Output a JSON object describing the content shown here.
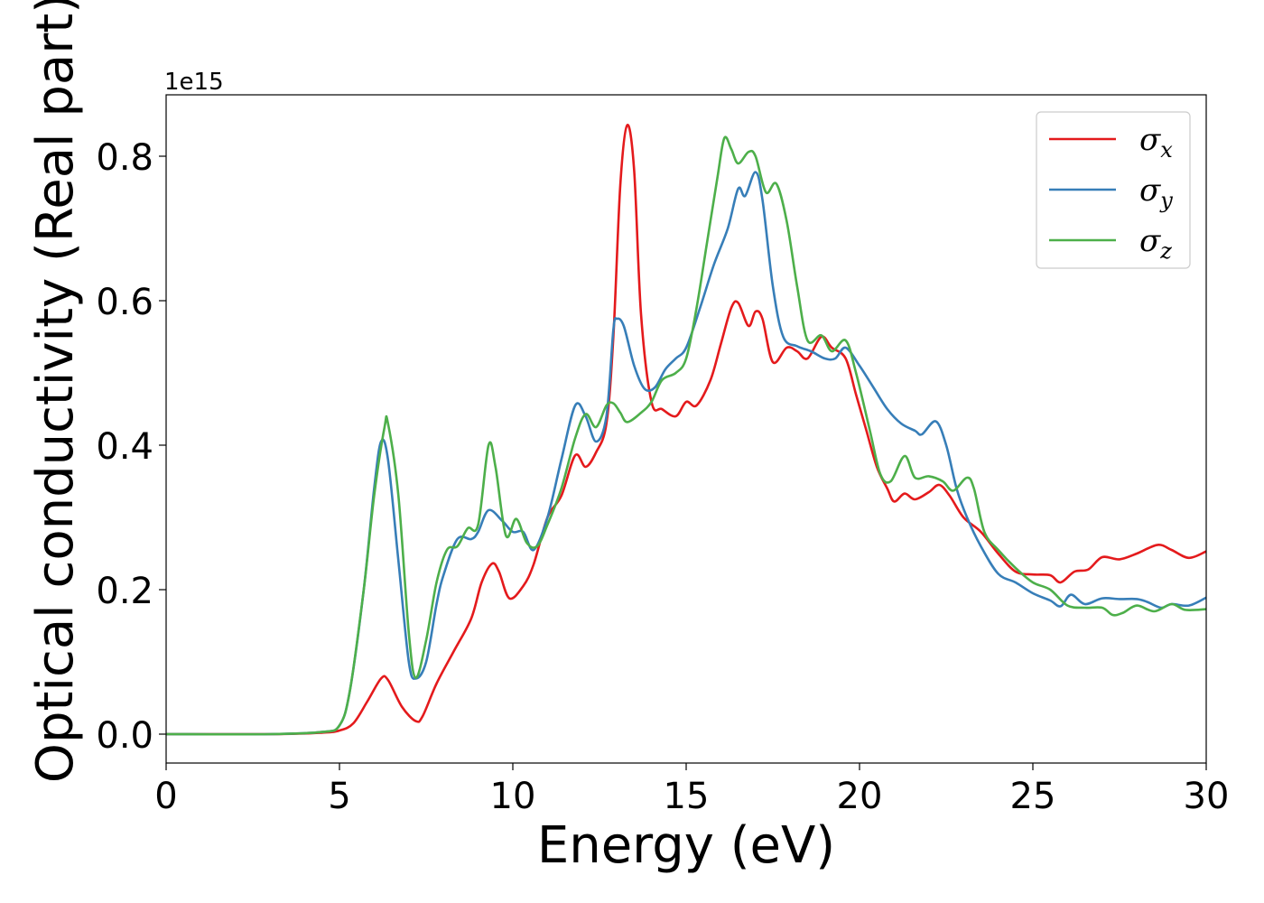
{
  "chart_data": {
    "type": "line",
    "xlabel": "Energy (eV)",
    "ylabel": "Optical conductivity (Real part)",
    "y_offset_label": "1e15",
    "y_scale": 1000000000000000.0,
    "xlim": [
      0,
      30
    ],
    "ylim": [
      -0.04,
      0.885
    ],
    "x_ticks": [
      0,
      5,
      10,
      15,
      20,
      25,
      30
    ],
    "x_tick_labels": [
      "0",
      "5",
      "10",
      "15",
      "20",
      "25",
      "30"
    ],
    "y_ticks": [
      0.0,
      0.2,
      0.4,
      0.6,
      0.8
    ],
    "y_tick_labels": [
      "0.0",
      "0.2",
      "0.4",
      "0.6",
      "0.8"
    ],
    "grid": false,
    "legend_position": "top-right",
    "series": [
      {
        "name": "σx",
        "symbol": "σ",
        "subscript": "x",
        "color": "#e41a1c",
        "points": [
          [
            0,
            0.0
          ],
          [
            3,
            0.0
          ],
          [
            4.5,
            0.002
          ],
          [
            5.0,
            0.005
          ],
          [
            5.4,
            0.015
          ],
          [
            5.8,
            0.045
          ],
          [
            6.2,
            0.077
          ],
          [
            6.4,
            0.075
          ],
          [
            6.8,
            0.038
          ],
          [
            7.2,
            0.018
          ],
          [
            7.4,
            0.025
          ],
          [
            7.8,
            0.07
          ],
          [
            8.3,
            0.115
          ],
          [
            8.8,
            0.16
          ],
          [
            9.1,
            0.21
          ],
          [
            9.4,
            0.236
          ],
          [
            9.6,
            0.225
          ],
          [
            9.9,
            0.188
          ],
          [
            10.3,
            0.205
          ],
          [
            10.6,
            0.235
          ],
          [
            11.0,
            0.3
          ],
          [
            11.4,
            0.33
          ],
          [
            11.8,
            0.386
          ],
          [
            12.1,
            0.37
          ],
          [
            12.4,
            0.39
          ],
          [
            12.7,
            0.43
          ],
          [
            12.9,
            0.55
          ],
          [
            13.1,
            0.76
          ],
          [
            13.3,
            0.843
          ],
          [
            13.5,
            0.78
          ],
          [
            13.7,
            0.58
          ],
          [
            14.0,
            0.46
          ],
          [
            14.3,
            0.45
          ],
          [
            14.7,
            0.44
          ],
          [
            15.0,
            0.46
          ],
          [
            15.3,
            0.455
          ],
          [
            15.7,
            0.49
          ],
          [
            16.0,
            0.54
          ],
          [
            16.3,
            0.59
          ],
          [
            16.5,
            0.597
          ],
          [
            16.8,
            0.565
          ],
          [
            17.0,
            0.585
          ],
          [
            17.2,
            0.575
          ],
          [
            17.5,
            0.515
          ],
          [
            17.9,
            0.535
          ],
          [
            18.2,
            0.53
          ],
          [
            18.5,
            0.52
          ],
          [
            18.9,
            0.55
          ],
          [
            19.2,
            0.535
          ],
          [
            19.6,
            0.52
          ],
          [
            19.9,
            0.47
          ],
          [
            20.2,
            0.42
          ],
          [
            20.5,
            0.37
          ],
          [
            20.8,
            0.34
          ],
          [
            21.0,
            0.322
          ],
          [
            21.3,
            0.333
          ],
          [
            21.6,
            0.325
          ],
          [
            22.0,
            0.335
          ],
          [
            22.3,
            0.345
          ],
          [
            22.6,
            0.33
          ],
          [
            23.0,
            0.3
          ],
          [
            23.5,
            0.28
          ],
          [
            24.0,
            0.25
          ],
          [
            24.5,
            0.225
          ],
          [
            25.0,
            0.221
          ],
          [
            25.5,
            0.22
          ],
          [
            25.8,
            0.21
          ],
          [
            26.2,
            0.225
          ],
          [
            26.6,
            0.228
          ],
          [
            27.0,
            0.245
          ],
          [
            27.5,
            0.242
          ],
          [
            28.0,
            0.25
          ],
          [
            28.6,
            0.262
          ],
          [
            29.0,
            0.255
          ],
          [
            29.5,
            0.244
          ],
          [
            30.0,
            0.253
          ]
        ]
      },
      {
        "name": "σy",
        "symbol": "σ",
        "subscript": "y",
        "color": "#377eb8",
        "points": [
          [
            0,
            0.0
          ],
          [
            3,
            0.0
          ],
          [
            4.5,
            0.003
          ],
          [
            5.0,
            0.012
          ],
          [
            5.3,
            0.06
          ],
          [
            5.7,
            0.2
          ],
          [
            6.0,
            0.34
          ],
          [
            6.2,
            0.405
          ],
          [
            6.4,
            0.38
          ],
          [
            6.7,
            0.24
          ],
          [
            7.0,
            0.1
          ],
          [
            7.2,
            0.077
          ],
          [
            7.5,
            0.1
          ],
          [
            7.8,
            0.18
          ],
          [
            8.0,
            0.22
          ],
          [
            8.4,
            0.27
          ],
          [
            8.8,
            0.27
          ],
          [
            9.0,
            0.28
          ],
          [
            9.3,
            0.31
          ],
          [
            9.7,
            0.295
          ],
          [
            10.0,
            0.28
          ],
          [
            10.3,
            0.28
          ],
          [
            10.6,
            0.255
          ],
          [
            11.0,
            0.3
          ],
          [
            11.4,
            0.38
          ],
          [
            11.8,
            0.455
          ],
          [
            12.1,
            0.44
          ],
          [
            12.4,
            0.405
          ],
          [
            12.7,
            0.44
          ],
          [
            12.9,
            0.56
          ],
          [
            13.0,
            0.575
          ],
          [
            13.2,
            0.565
          ],
          [
            13.5,
            0.51
          ],
          [
            13.8,
            0.478
          ],
          [
            14.1,
            0.48
          ],
          [
            14.4,
            0.505
          ],
          [
            14.7,
            0.52
          ],
          [
            15.0,
            0.535
          ],
          [
            15.4,
            0.59
          ],
          [
            15.8,
            0.65
          ],
          [
            16.2,
            0.7
          ],
          [
            16.5,
            0.755
          ],
          [
            16.7,
            0.745
          ],
          [
            17.0,
            0.778
          ],
          [
            17.2,
            0.74
          ],
          [
            17.5,
            0.62
          ],
          [
            17.8,
            0.55
          ],
          [
            18.2,
            0.537
          ],
          [
            18.6,
            0.53
          ],
          [
            19.0,
            0.52
          ],
          [
            19.3,
            0.52
          ],
          [
            19.6,
            0.535
          ],
          [
            20.0,
            0.51
          ],
          [
            20.4,
            0.48
          ],
          [
            20.8,
            0.45
          ],
          [
            21.2,
            0.43
          ],
          [
            21.6,
            0.42
          ],
          [
            21.8,
            0.415
          ],
          [
            22.2,
            0.433
          ],
          [
            22.5,
            0.4
          ],
          [
            22.8,
            0.34
          ],
          [
            23.1,
            0.3
          ],
          [
            23.5,
            0.26
          ],
          [
            24.0,
            0.222
          ],
          [
            24.5,
            0.21
          ],
          [
            25.0,
            0.195
          ],
          [
            25.5,
            0.185
          ],
          [
            25.8,
            0.177
          ],
          [
            26.1,
            0.193
          ],
          [
            26.5,
            0.18
          ],
          [
            27.0,
            0.188
          ],
          [
            27.5,
            0.187
          ],
          [
            28.0,
            0.187
          ],
          [
            28.3,
            0.183
          ],
          [
            28.7,
            0.175
          ],
          [
            29.0,
            0.18
          ],
          [
            29.5,
            0.178
          ],
          [
            30.0,
            0.189
          ]
        ]
      },
      {
        "name": "σz",
        "symbol": "σ",
        "subscript": "z",
        "color": "#4daf4a",
        "points": [
          [
            0,
            0.0
          ],
          [
            3,
            0.0
          ],
          [
            4.5,
            0.003
          ],
          [
            5.0,
            0.012
          ],
          [
            5.3,
            0.06
          ],
          [
            5.7,
            0.2
          ],
          [
            6.0,
            0.33
          ],
          [
            6.3,
            0.425
          ],
          [
            6.4,
            0.43
          ],
          [
            6.7,
            0.33
          ],
          [
            7.0,
            0.14
          ],
          [
            7.2,
            0.078
          ],
          [
            7.5,
            0.13
          ],
          [
            7.8,
            0.21
          ],
          [
            8.1,
            0.255
          ],
          [
            8.4,
            0.26
          ],
          [
            8.7,
            0.285
          ],
          [
            9.0,
            0.29
          ],
          [
            9.3,
            0.4
          ],
          [
            9.5,
            0.37
          ],
          [
            9.8,
            0.275
          ],
          [
            10.1,
            0.298
          ],
          [
            10.4,
            0.265
          ],
          [
            10.7,
            0.26
          ],
          [
            11.0,
            0.29
          ],
          [
            11.4,
            0.34
          ],
          [
            11.8,
            0.41
          ],
          [
            12.1,
            0.443
          ],
          [
            12.4,
            0.425
          ],
          [
            12.7,
            0.455
          ],
          [
            12.9,
            0.458
          ],
          [
            13.1,
            0.445
          ],
          [
            13.3,
            0.432
          ],
          [
            13.7,
            0.445
          ],
          [
            14.0,
            0.46
          ],
          [
            14.3,
            0.49
          ],
          [
            14.7,
            0.5
          ],
          [
            15.0,
            0.52
          ],
          [
            15.3,
            0.59
          ],
          [
            15.6,
            0.68
          ],
          [
            15.9,
            0.77
          ],
          [
            16.1,
            0.825
          ],
          [
            16.3,
            0.81
          ],
          [
            16.5,
            0.79
          ],
          [
            16.8,
            0.806
          ],
          [
            17.0,
            0.8
          ],
          [
            17.3,
            0.75
          ],
          [
            17.6,
            0.762
          ],
          [
            17.9,
            0.71
          ],
          [
            18.2,
            0.62
          ],
          [
            18.5,
            0.545
          ],
          [
            18.9,
            0.552
          ],
          [
            19.2,
            0.53
          ],
          [
            19.6,
            0.545
          ],
          [
            19.9,
            0.5
          ],
          [
            20.3,
            0.42
          ],
          [
            20.6,
            0.36
          ],
          [
            20.9,
            0.35
          ],
          [
            21.3,
            0.385
          ],
          [
            21.6,
            0.355
          ],
          [
            22.0,
            0.357
          ],
          [
            22.4,
            0.35
          ],
          [
            22.7,
            0.337
          ],
          [
            23.1,
            0.355
          ],
          [
            23.3,
            0.34
          ],
          [
            23.6,
            0.28
          ],
          [
            24.0,
            0.255
          ],
          [
            24.5,
            0.23
          ],
          [
            25.0,
            0.21
          ],
          [
            25.5,
            0.2
          ],
          [
            26.0,
            0.178
          ],
          [
            26.5,
            0.175
          ],
          [
            27.0,
            0.175
          ],
          [
            27.3,
            0.165
          ],
          [
            27.6,
            0.168
          ],
          [
            28.0,
            0.178
          ],
          [
            28.5,
            0.17
          ],
          [
            29.0,
            0.18
          ],
          [
            29.4,
            0.172
          ],
          [
            30.0,
            0.173
          ]
        ]
      }
    ]
  }
}
